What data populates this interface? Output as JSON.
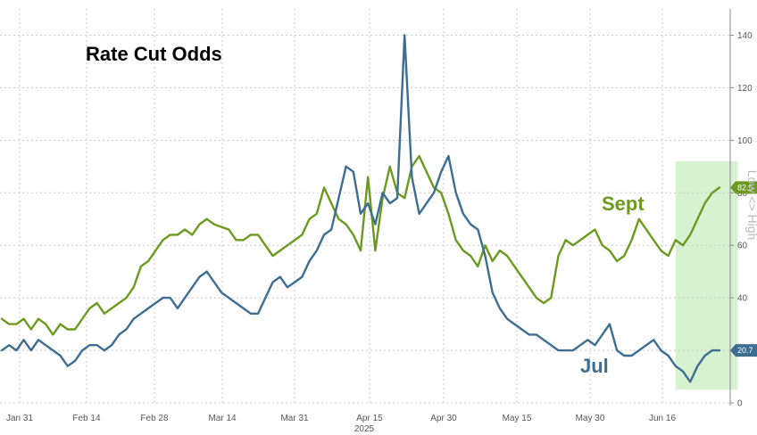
{
  "chart_data": {
    "type": "line",
    "title": "Rate Cut Odds",
    "x_tick_labels": [
      "Jan 31",
      "Feb 14",
      "Feb 28",
      "Mar 14",
      "Mar 31",
      "Apr 15",
      "Apr 30",
      "May 15",
      "May 30",
      "Jun 16"
    ],
    "x_year_label": "2025",
    "y_ticks": [
      0,
      20,
      40,
      60,
      80,
      100,
      120,
      140
    ],
    "y_tick_labels": [
      "0",
      "20",
      "40",
      "60",
      "80",
      "100",
      "120",
      "140"
    ],
    "ylim": [
      0,
      150
    ],
    "right_axis_label": "Low <> High",
    "grid": true,
    "highlight": {
      "from_index": 92,
      "to_index": 100,
      "color": "#d7f2d0"
    },
    "series": [
      {
        "name": "Sept",
        "color": "#6b9a1f",
        "label": "Sept",
        "last_value_label": "82.5",
        "values": [
          32,
          30,
          30,
          32,
          28,
          32,
          30,
          26,
          30,
          28,
          28,
          32,
          36,
          38,
          34,
          36,
          38,
          40,
          44,
          52,
          54,
          58,
          62,
          64,
          64,
          66,
          64,
          68,
          70,
          68,
          67,
          66,
          62,
          62,
          64,
          64,
          60,
          56,
          58,
          60,
          62,
          64,
          70,
          72,
          82,
          76,
          70,
          68,
          64,
          58,
          86,
          58,
          78,
          90,
          80,
          78,
          90,
          94,
          88,
          82,
          80,
          72,
          62,
          58,
          56,
          52,
          60,
          54,
          58,
          56,
          52,
          48,
          44,
          40,
          38,
          40,
          56,
          62,
          60,
          62,
          64,
          66,
          60,
          58,
          54,
          56,
          62,
          70,
          66,
          62,
          58,
          56,
          62,
          60,
          64,
          70,
          76,
          80,
          82
        ]
      },
      {
        "name": "Jul",
        "color": "#3e6d92",
        "label": "Jul",
        "last_value_label": "20.7",
        "values": [
          20,
          22,
          20,
          24,
          20,
          24,
          22,
          20,
          18,
          14,
          16,
          20,
          22,
          22,
          20,
          22,
          26,
          28,
          32,
          34,
          36,
          38,
          40,
          40,
          36,
          40,
          44,
          48,
          50,
          46,
          42,
          40,
          38,
          36,
          34,
          34,
          40,
          46,
          48,
          44,
          46,
          48,
          54,
          58,
          64,
          66,
          78,
          90,
          88,
          72,
          76,
          68,
          80,
          76,
          78,
          140,
          86,
          72,
          76,
          80,
          88,
          94,
          80,
          72,
          68,
          66,
          56,
          42,
          36,
          32,
          30,
          28,
          26,
          26,
          24,
          22,
          20,
          20,
          20,
          22,
          24,
          22,
          26,
          30,
          20,
          18,
          18,
          20,
          22,
          24,
          20,
          18,
          14,
          12,
          8,
          14,
          18,
          20,
          20
        ]
      }
    ]
  }
}
